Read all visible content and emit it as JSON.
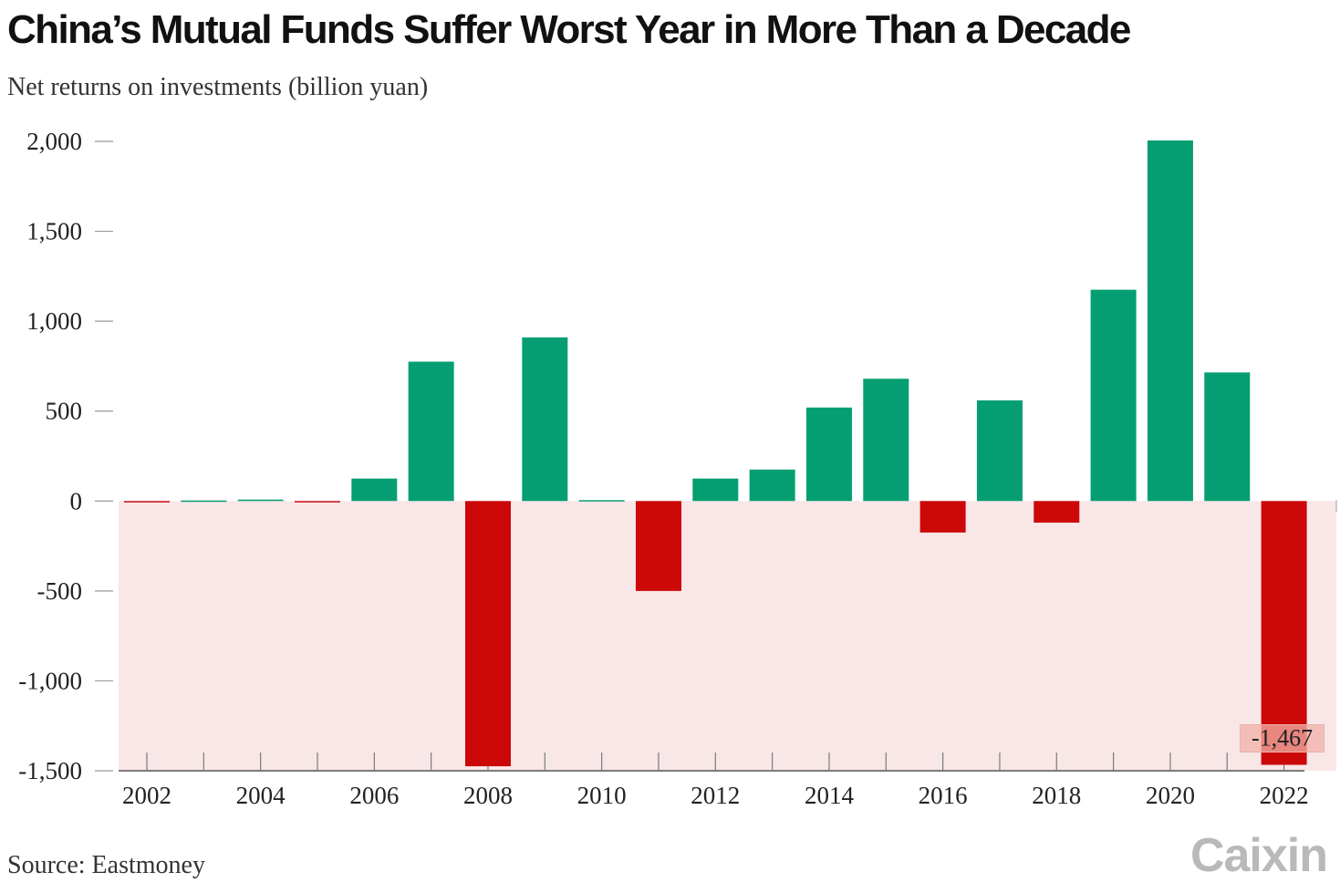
{
  "title": "China’s Mutual Funds Suffer Worst Year in More Than a Decade",
  "subtitle": "Net returns on investments (billion yuan)",
  "source": "Source: Eastmoney",
  "logo": "Caixin",
  "colors": {
    "positive": "#059e72",
    "negative": "#cc0808",
    "negative_band": "#f9e7e7",
    "label_box": "#f2b0a8"
  },
  "chart_data": {
    "type": "bar",
    "title": "China’s Mutual Funds Suffer Worst Year in More Than a Decade",
    "subtitle": "Net returns on investments (billion yuan)",
    "xlabel": "",
    "ylabel": "",
    "ylim": [
      -1500,
      2000
    ],
    "yticks": [
      2000,
      1500,
      1000,
      500,
      0,
      -500,
      -1000,
      -1500
    ],
    "ytick_labels": [
      "2,000",
      "1,500",
      "1,000",
      "500",
      "0",
      "-500",
      "-1,000",
      "-1,500"
    ],
    "xtick_labels": [
      "2002",
      "2004",
      "2006",
      "2008",
      "2010",
      "2012",
      "2014",
      "2016",
      "2018",
      "2020",
      "2022"
    ],
    "categories": [
      "2002",
      "2003",
      "2004",
      "2005",
      "2006",
      "2007",
      "2008",
      "2009",
      "2010",
      "2011",
      "2012",
      "2013",
      "2014",
      "2015",
      "2016",
      "2017",
      "2018",
      "2019",
      "2020",
      "2021",
      "2022"
    ],
    "values": [
      -6,
      3,
      8,
      -4,
      125,
      775,
      -1475,
      910,
      5,
      -500,
      125,
      175,
      520,
      680,
      -175,
      560,
      -120,
      1175,
      2005,
      715,
      -1467
    ],
    "annotations": [
      {
        "category": "2022",
        "text": "-1,467"
      }
    ],
    "grid": false,
    "legend": "none"
  }
}
